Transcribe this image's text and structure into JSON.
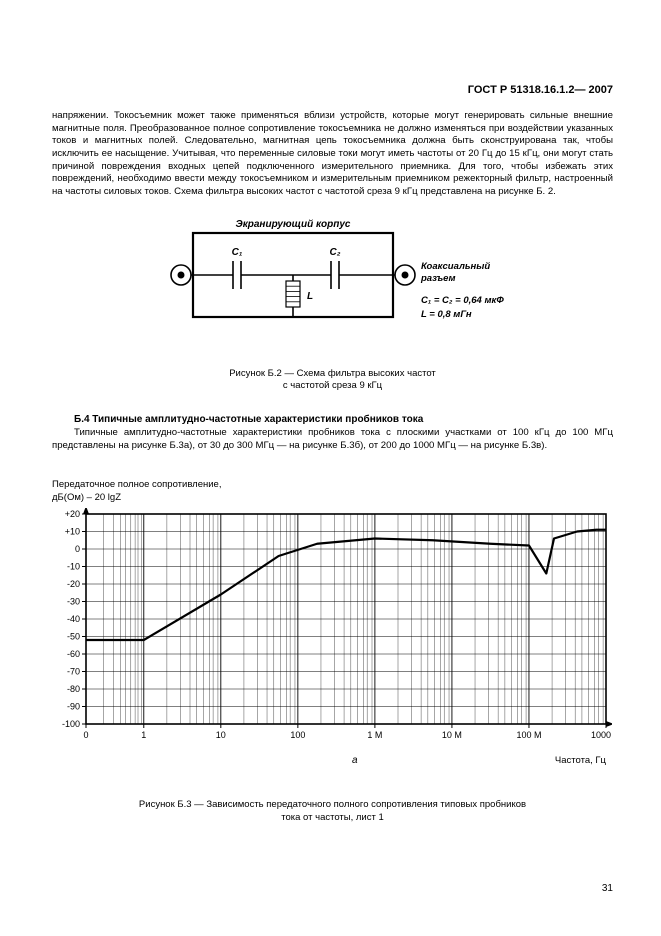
{
  "doc_id": "ГОСТ Р 51318.16.1.2— 2007",
  "page_number": "31",
  "paragraph": "напряжении. Токосъемник может также применяться вблизи устройств, которые могут генерировать сильные внешние магнитные поля. Преобразованное полное сопротивление токосъемника не должно изменяться при воздействии указанных токов и магнитных полей. Следовательно, магнитная цепь токосъемника должна быть сконструирована так, чтобы исключить ее насыщение. Учитывая, что переменные силовые токи могут иметь частоты от 20 Гц до 15 кГц, они могут стать причиной повреждения входных цепей подключенного измерительного приемника. Для того, чтобы избежать этих повреждений, необходимо ввести между токосъемником и измерительным приемником режекторный фильтр, настроенный на частоты силовых токов. Схема фильтра высоких частот с частотой среза 9 кГц представлена на рисунке Б. 2.",
  "circuit": {
    "title_top": "Экранирующий корпус",
    "c1_label": "C₁",
    "c2_label": "C₂",
    "l_label": "L",
    "right_top": "Коаксиальный",
    "right_bottom": "разъем",
    "values_line1": "C₁ = C₂ = 0,64 мкФ",
    "values_line2": "L = 0,8 мГн",
    "font_weight": "bold",
    "line_color": "#000000",
    "line_width_outer": 2.2,
    "line_width_inner": 1.6
  },
  "fig_b2_caption_line1": "Рисунок Б.2 — Схема фильтра высоких частот",
  "fig_b2_caption_line2": "с частотой среза 9 кГц",
  "section_b4_title": "Б.4 Типичные амплитудно-частотные характеристики пробников тока",
  "section_b4_text": "Типичные амплитудно-частотные характеристики пробников тока с плоскими участками от 100 кГц до 100 МГц представлены на рисунке Б.3а), от 30 до 300 МГц — на рисунке Б.3б), от 200 до 1000 МГц — на рисунке Б.3в).",
  "chart": {
    "type": "line",
    "y_axis_title_line1": "Передаточное полное сопротивление,",
    "y_axis_title_line2": "дБ(Ом) – 20 lgZ",
    "x_axis_title": "Частота, Гц",
    "ylim": [
      -100,
      20
    ],
    "ytick_step": 10,
    "y_ticks": [
      "+20",
      "+10",
      "0",
      "-10",
      "-20",
      "-30",
      "-40",
      "-50",
      "-60",
      "-70",
      "-80",
      "-90",
      "-100"
    ],
    "x_scale": "log",
    "x_ticks": [
      {
        "pos": 0,
        "label": "0"
      },
      {
        "pos": 60,
        "label": "1"
      },
      {
        "pos": 140,
        "label": "10"
      },
      {
        "pos": 220,
        "label": "100"
      },
      {
        "pos": 300,
        "label": "1 М"
      },
      {
        "pos": 380,
        "label": "10 М"
      },
      {
        "pos": 460,
        "label": "100 М"
      },
      {
        "pos": 540,
        "label": "1000 М"
      }
    ],
    "subplot_label": "а",
    "background_color": "#ffffff",
    "axis_color": "#000000",
    "grid_color": "#000000",
    "axis_width": 1.6,
    "curve_color": "#000000",
    "curve_width": 2.2,
    "curve_points": [
      [
        0,
        -52
      ],
      [
        60,
        -52
      ],
      [
        140,
        -26
      ],
      [
        200,
        -4
      ],
      [
        240,
        3
      ],
      [
        300,
        6
      ],
      [
        360,
        5
      ],
      [
        420,
        3
      ],
      [
        460,
        2
      ],
      [
        478,
        -14
      ],
      [
        486,
        6
      ],
      [
        510,
        10
      ],
      [
        530,
        11
      ],
      [
        540,
        11
      ]
    ],
    "log_minor_offsets": [
      0,
      24,
      38,
      48,
      55,
      62,
      68,
      72,
      77
    ]
  },
  "fig_b3_caption_line1": "Рисунок Б.3 — Зависимость передаточного полного сопротивления типовых пробников",
  "fig_b3_caption_line2": "тока от частоты, лист 1"
}
